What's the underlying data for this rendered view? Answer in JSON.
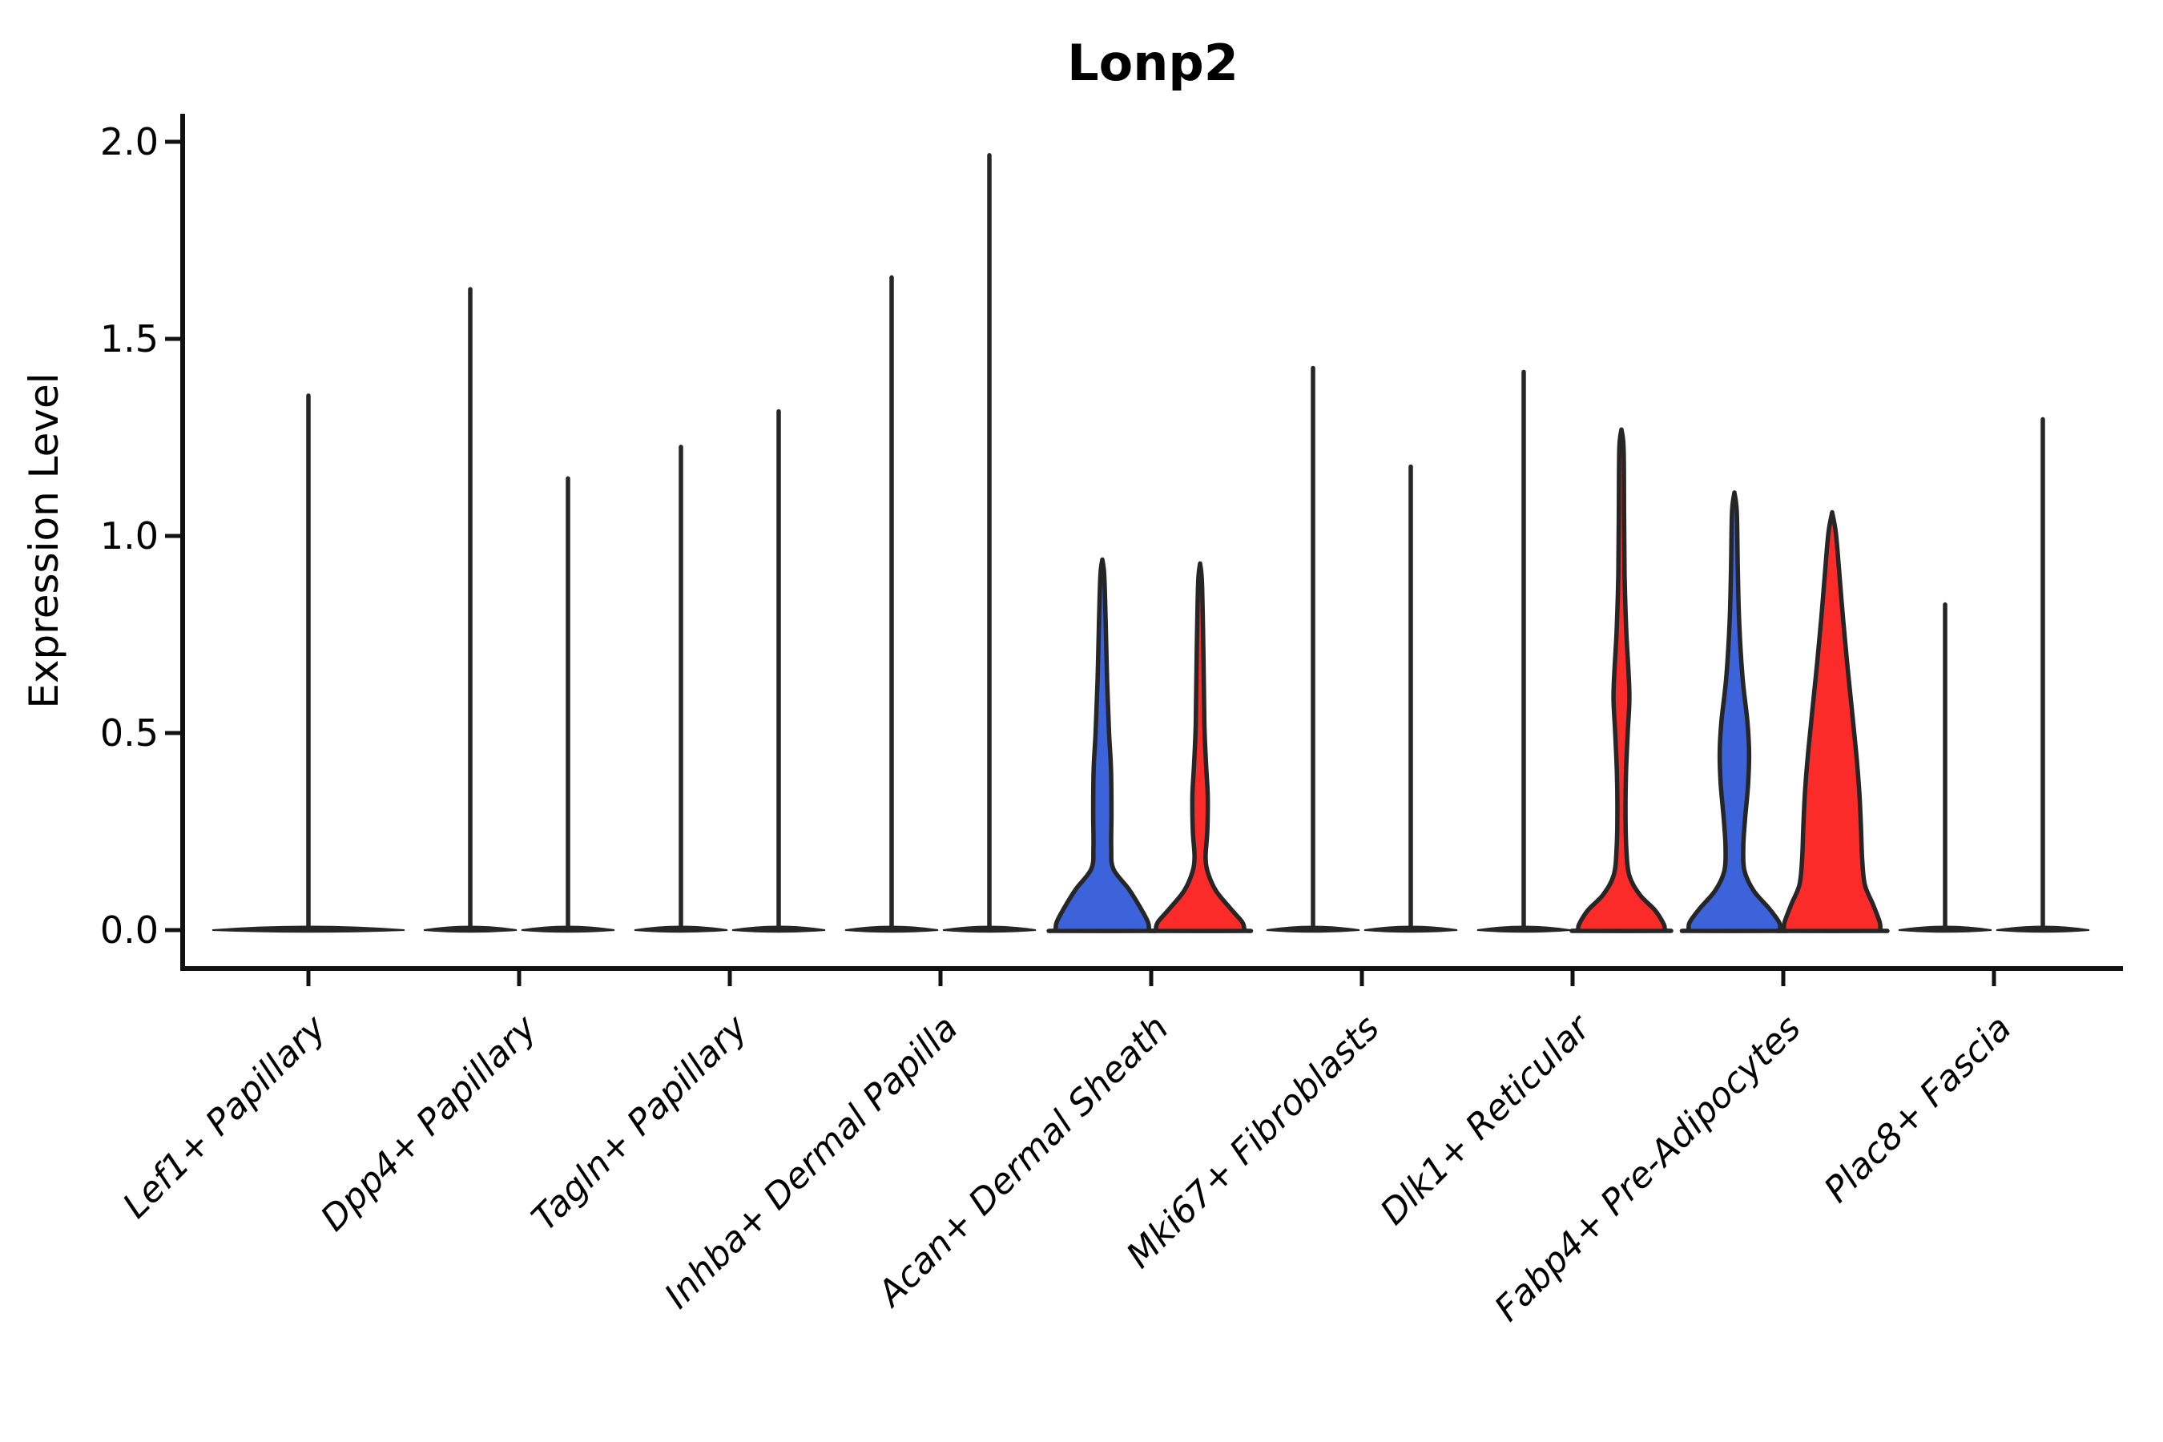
{
  "chart_data": {
    "type": "violin",
    "title": "Lonp2",
    "ylabel": "Expression Level",
    "xlabel": "",
    "ylim": [
      0.0,
      2.0
    ],
    "yticks": [
      0.0,
      0.5,
      1.0,
      1.5,
      2.0
    ],
    "ytick_labels": [
      "0.0",
      "0.5",
      "1.0",
      "1.5",
      "2.0"
    ],
    "grid": "off",
    "legend": "none",
    "colors": {
      "blue": "#3D63DB",
      "red": "#FB2B2A",
      "outline": "#262626",
      "axis": "#111111"
    },
    "categories": [
      "Lef1+ Papillary",
      "Dpp4+ Papillary",
      "Tagln+ Papillary",
      "Inhba+ Dermal Papilla",
      "Acan+ Dermal Sheath",
      "Mki67+ Fibroblasts",
      "Dlk1+ Reticular",
      "Fabp4+ Pre-Adipocytes",
      "Plac8+ Fascia"
    ],
    "groups": [
      {
        "category": "Lef1+ Papillary",
        "violins": [
          {
            "hue": "none",
            "style": "spike",
            "max": 1.36,
            "wide": true
          }
        ]
      },
      {
        "category": "Dpp4+ Papillary",
        "violins": [
          {
            "hue": "blue",
            "style": "spike",
            "max": 1.63
          },
          {
            "hue": "red",
            "style": "spike",
            "max": 1.15
          }
        ]
      },
      {
        "category": "Tagln+ Papillary",
        "violins": [
          {
            "hue": "blue",
            "style": "spike",
            "max": 1.23
          },
          {
            "hue": "red",
            "style": "spike",
            "max": 1.32
          }
        ]
      },
      {
        "category": "Inhba+ Dermal Papilla",
        "violins": [
          {
            "hue": "blue",
            "style": "spike",
            "max": 1.66
          },
          {
            "hue": "red",
            "style": "spike",
            "max": 1.97
          }
        ]
      },
      {
        "category": "Acan+ Dermal Sheath",
        "violins": [
          {
            "hue": "blue",
            "style": "filled",
            "max": 0.94,
            "profile": [
              [
                0.94,
                0.0
              ],
              [
                0.9,
                0.04
              ],
              [
                0.78,
                0.07
              ],
              [
                0.63,
                0.1
              ],
              [
                0.5,
                0.14
              ],
              [
                0.41,
                0.18
              ],
              [
                0.3,
                0.19
              ],
              [
                0.21,
                0.185
              ],
              [
                0.155,
                0.23
              ],
              [
                0.104,
                0.55
              ],
              [
                0.057,
                0.79
              ],
              [
                0.02,
                0.95
              ],
              [
                0.0,
                0.97
              ]
            ]
          },
          {
            "hue": "red",
            "style": "filled",
            "max": 0.93,
            "profile": [
              [
                0.93,
                0.0
              ],
              [
                0.88,
                0.04
              ],
              [
                0.7,
                0.07
              ],
              [
                0.52,
                0.09
              ],
              [
                0.42,
                0.125
              ],
              [
                0.34,
                0.16
              ],
              [
                0.25,
                0.15
              ],
              [
                0.185,
                0.115
              ],
              [
                0.145,
                0.165
              ],
              [
                0.1,
                0.33
              ],
              [
                0.055,
                0.63
              ],
              [
                0.02,
                0.88
              ],
              [
                0.0,
                0.92
              ]
            ]
          }
        ]
      },
      {
        "category": "Mki67+ Fibroblasts",
        "violins": [
          {
            "hue": "blue",
            "style": "spike",
            "max": 1.43
          },
          {
            "hue": "red",
            "style": "spike",
            "max": 1.18
          }
        ]
      },
      {
        "category": "Dlk1+ Reticular",
        "violins": [
          {
            "hue": "blue",
            "style": "spike",
            "max": 1.42
          },
          {
            "hue": "red",
            "style": "filled",
            "max": 1.27,
            "profile": [
              [
                1.27,
                0.0
              ],
              [
                1.22,
                0.045
              ],
              [
                1.05,
                0.055
              ],
              [
                0.9,
                0.065
              ],
              [
                0.76,
                0.1
              ],
              [
                0.66,
                0.145
              ],
              [
                0.585,
                0.165
              ],
              [
                0.5,
                0.13
              ],
              [
                0.4,
                0.095
              ],
              [
                0.3,
                0.085
              ],
              [
                0.21,
                0.1
              ],
              [
                0.14,
                0.16
              ],
              [
                0.09,
                0.38
              ],
              [
                0.05,
                0.7
              ],
              [
                0.015,
                0.88
              ],
              [
                0.0,
                0.9
              ]
            ]
          }
        ]
      },
      {
        "category": "Fabp4+ Pre-Adipocytes",
        "violins": [
          {
            "hue": "blue",
            "style": "filled",
            "max": 1.11,
            "profile": [
              [
                1.11,
                0.0
              ],
              [
                1.06,
                0.05
              ],
              [
                0.92,
                0.07
              ],
              [
                0.78,
                0.1
              ],
              [
                0.64,
                0.17
              ],
              [
                0.53,
                0.27
              ],
              [
                0.45,
                0.305
              ],
              [
                0.37,
                0.285
              ],
              [
                0.28,
                0.22
              ],
              [
                0.21,
                0.185
              ],
              [
                0.15,
                0.21
              ],
              [
                0.1,
                0.4
              ],
              [
                0.055,
                0.72
              ],
              [
                0.02,
                0.93
              ],
              [
                0.0,
                0.95
              ]
            ]
          },
          {
            "hue": "red",
            "style": "filled",
            "max": 1.06,
            "profile": [
              [
                1.06,
                0.0
              ],
              [
                1.01,
                0.075
              ],
              [
                0.92,
                0.14
              ],
              [
                0.8,
                0.22
              ],
              [
                0.68,
                0.31
              ],
              [
                0.56,
                0.41
              ],
              [
                0.45,
                0.5
              ],
              [
                0.35,
                0.565
              ],
              [
                0.26,
                0.6
              ],
              [
                0.18,
                0.625
              ],
              [
                0.115,
                0.68
              ],
              [
                0.065,
                0.85
              ],
              [
                0.02,
                0.99
              ],
              [
                0.0,
                1.0
              ]
            ]
          }
        ]
      },
      {
        "category": "Plac8+ Fascia",
        "violins": [
          {
            "hue": "blue",
            "style": "spike",
            "max": 0.83
          },
          {
            "hue": "red",
            "style": "spike",
            "max": 1.3
          }
        ]
      }
    ]
  }
}
